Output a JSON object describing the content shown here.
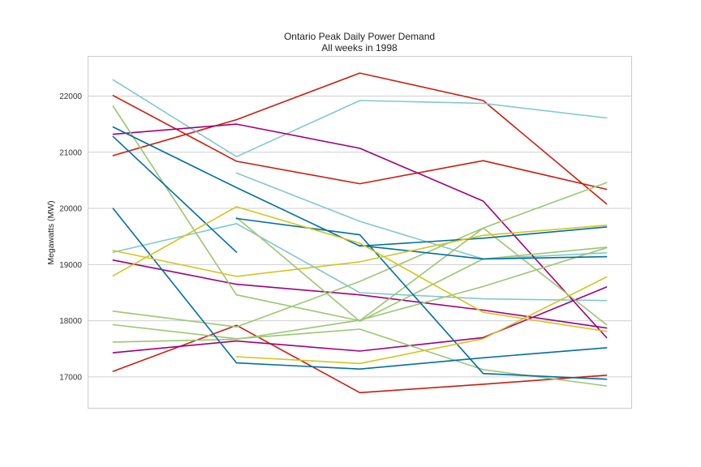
{
  "chart_data": {
    "type": "line",
    "title": "Ontario Peak Daily Power Demand",
    "subtitle": "All weeks in 1998",
    "xlabel": "",
    "ylabel": "Megawatts (MW)",
    "x": [
      0,
      1,
      2,
      3,
      4
    ],
    "xlim": [
      -0.2,
      4.2
    ],
    "ylim": [
      16450,
      22700
    ],
    "yticks": [
      17000,
      18000,
      19000,
      20000,
      21000,
      22000
    ],
    "grid": true,
    "legend": "none",
    "series": [
      {
        "color": "#c81e0f",
        "values": [
          22010,
          20840,
          20440,
          20850,
          20340
        ]
      },
      {
        "color": "#c81e0f",
        "values": [
          20940,
          21580,
          22410,
          21920,
          20080
        ]
      },
      {
        "color": "#c81e0f",
        "values": [
          17100,
          17920,
          16720,
          16870,
          17030
        ]
      },
      {
        "color": "#80c8d0",
        "values": [
          22290,
          20920,
          21920,
          21870,
          21610
        ]
      },
      {
        "color": "#80c8d0",
        "values": [
          19220,
          19730,
          18500,
          18390,
          18360
        ]
      },
      {
        "color": "#80c8d0",
        "values": [
          null,
          20630,
          19770,
          19100,
          19210
        ]
      },
      {
        "color": "#a0007a",
        "values": [
          21320,
          21500,
          21070,
          20130,
          17700
        ]
      },
      {
        "color": "#a0007a",
        "values": [
          19080,
          18650,
          18460,
          18190,
          17870
        ]
      },
      {
        "color": "#a0007a",
        "values": [
          17430,
          17640,
          17460,
          17700,
          18600
        ]
      },
      {
        "color": "#9cc670",
        "values": [
          21820,
          18460,
          18000,
          19650,
          17930
        ]
      },
      {
        "color": "#9cc670",
        "values": [
          18170,
          17890,
          18700,
          19650,
          20460
        ]
      },
      {
        "color": "#9cc670",
        "values": [
          17930,
          17680,
          17850,
          17130,
          16840
        ]
      },
      {
        "color": "#9cc670",
        "values": [
          17620,
          17670,
          18010,
          18610,
          19300
        ]
      },
      {
        "color": "#9cc670",
        "values": [
          null,
          19840,
          17990,
          19100,
          19310
        ]
      },
      {
        "color": "#006fa0",
        "values": [
          21450,
          20370,
          19330,
          19470,
          19670
        ]
      },
      {
        "color": "#006fa0",
        "values": [
          21280,
          19220,
          null,
          null,
          null
        ]
      },
      {
        "color": "#006fa0",
        "values": [
          20000,
          17250,
          17140,
          17340,
          17520
        ]
      },
      {
        "color": "#006fa0",
        "values": [
          null,
          19820,
          19530,
          17060,
          16960
        ]
      },
      {
        "color": "#006fa0",
        "values": [
          null,
          null,
          19340,
          19100,
          19140
        ]
      },
      {
        "color": "#d4c41e",
        "values": [
          18800,
          20030,
          19380,
          18150,
          17810
        ]
      },
      {
        "color": "#d4c41e",
        "values": [
          19250,
          18790,
          19050,
          19520,
          19700
        ]
      },
      {
        "color": "#d4c41e",
        "values": [
          null,
          17360,
          17240,
          17680,
          18780
        ]
      }
    ]
  }
}
